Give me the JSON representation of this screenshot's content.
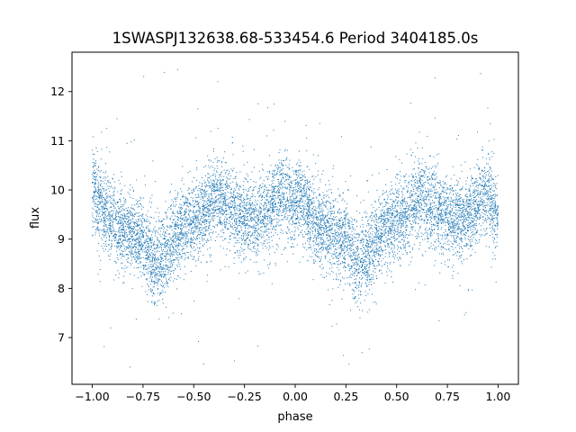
{
  "chart_data": {
    "type": "scatter",
    "title": "1SWASPJ132638.68-533454.6 Period 3404185.0s",
    "xlabel": "phase",
    "ylabel": "flux",
    "xlim": [
      -1.1,
      1.1
    ],
    "ylim": [
      6.05,
      12.8
    ],
    "xticks": [
      -1.0,
      -0.75,
      -0.5,
      -0.25,
      0.0,
      0.25,
      0.5,
      0.75,
      1.0
    ],
    "xtick_labels": [
      "−1.00",
      "−0.75",
      "−0.50",
      "−0.25",
      "0.00",
      "0.25",
      "0.50",
      "0.75",
      "1.00"
    ],
    "yticks": [
      7,
      8,
      9,
      10,
      11,
      12
    ],
    "ytick_labels": [
      "7",
      "8",
      "9",
      "10",
      "11",
      "12"
    ],
    "grid": false,
    "legend": "none",
    "marker_color": "#1f77b4",
    "series": [
      {
        "phase_range": [
          -1.0,
          1.0
        ],
        "approx_mean_flux_profile": {
          "phase": [
            0.0,
            0.05,
            0.1,
            0.15,
            0.2,
            0.25,
            0.3,
            0.35,
            0.4,
            0.45,
            0.5,
            0.55,
            0.6,
            0.65,
            0.7,
            0.75,
            0.8,
            0.85,
            0.9,
            0.95,
            1.0
          ],
          "flux": [
            9.95,
            9.65,
            9.35,
            9.2,
            9.1,
            9.0,
            8.55,
            8.6,
            9.0,
            9.25,
            9.4,
            9.45,
            9.85,
            9.75,
            9.6,
            9.45,
            9.35,
            9.5,
            9.75,
            9.95,
            9.5
          ]
        },
        "approx_scatter_halfwidth": 0.55,
        "approx_min": 6.35,
        "approx_max": 12.45
      }
    ]
  }
}
